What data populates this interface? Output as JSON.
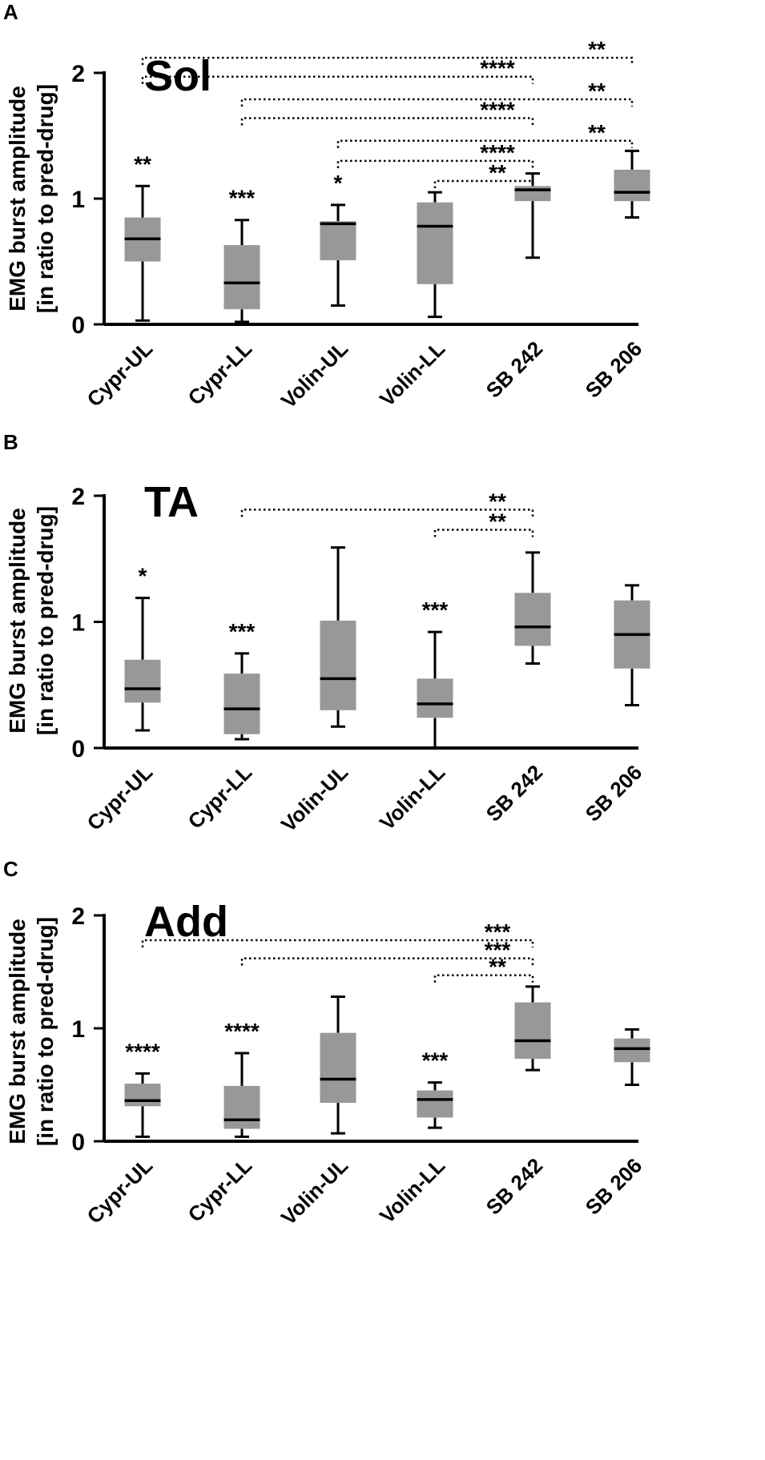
{
  "chart_data": [
    {
      "type": "box",
      "panel": "A",
      "title": "Sol",
      "ylabel_line1": "EMG burst amplitude",
      "ylabel_line2": "[in ratio to pred-drug]",
      "ylim": [
        0,
        2
      ],
      "yticks": [
        "0",
        "1",
        "2"
      ],
      "categories": [
        "Cypr-UL",
        "Cypr-LL",
        "Volin-UL",
        "Volin-LL",
        "SB 242",
        "SB 206"
      ],
      "boxes": [
        {
          "min": 0.03,
          "q1": 0.5,
          "median": 0.68,
          "q3": 0.85,
          "max": 1.1
        },
        {
          "min": 0.02,
          "q1": 0.12,
          "median": 0.33,
          "q3": 0.63,
          "max": 0.83
        },
        {
          "min": 0.15,
          "q1": 0.51,
          "median": 0.8,
          "q3": 0.82,
          "max": 0.95
        },
        {
          "min": 0.06,
          "q1": 0.32,
          "median": 0.78,
          "q3": 0.97,
          "max": 1.05
        },
        {
          "min": 0.53,
          "q1": 0.98,
          "median": 1.07,
          "q3": 1.1,
          "max": 1.2
        },
        {
          "min": 0.85,
          "q1": 0.98,
          "median": 1.05,
          "q3": 1.23,
          "max": 1.38
        }
      ],
      "stars": [
        "**",
        "***",
        "*",
        "",
        "",
        ""
      ],
      "comparisons": [
        {
          "from": 0,
          "to": 5,
          "label": "**",
          "level": 2.12
        },
        {
          "from": 0,
          "to": 4,
          "label": "****",
          "level": 1.97
        },
        {
          "from": 1,
          "to": 5,
          "label": "**",
          "level": 1.79
        },
        {
          "from": 1,
          "to": 4,
          "label": "****",
          "level": 1.64
        },
        {
          "from": 2,
          "to": 5,
          "label": "**",
          "level": 1.46
        },
        {
          "from": 2,
          "to": 4,
          "label": "****",
          "level": 1.3
        },
        {
          "from": 3,
          "to": 4,
          "label": "**",
          "level": 1.14
        }
      ]
    },
    {
      "type": "box",
      "panel": "B",
      "title": "TA",
      "ylabel_line1": "EMG burst amplitude",
      "ylabel_line2": "[in ratio to pred-drug]",
      "ylim": [
        0,
        2
      ],
      "yticks": [
        "0",
        "1",
        "2"
      ],
      "categories": [
        "Cypr-UL",
        "Cypr-LL",
        "Volin-UL",
        "Volin-LL",
        "SB 242",
        "SB 206"
      ],
      "boxes": [
        {
          "min": 0.14,
          "q1": 0.36,
          "median": 0.47,
          "q3": 0.7,
          "max": 1.19
        },
        {
          "min": 0.07,
          "q1": 0.11,
          "median": 0.31,
          "q3": 0.59,
          "max": 0.75
        },
        {
          "min": 0.17,
          "q1": 0.3,
          "median": 0.55,
          "q3": 1.01,
          "max": 1.59
        },
        {
          "min": 0.0,
          "q1": 0.24,
          "median": 0.35,
          "q3": 0.55,
          "max": 0.92
        },
        {
          "min": 0.67,
          "q1": 0.81,
          "median": 0.96,
          "q3": 1.23,
          "max": 1.55
        },
        {
          "min": 0.34,
          "q1": 0.63,
          "median": 0.9,
          "q3": 1.17,
          "max": 1.29
        }
      ],
      "stars": [
        "*",
        "***",
        "",
        "***",
        "",
        ""
      ],
      "comparisons": [
        {
          "from": 1,
          "to": 4,
          "label": "**",
          "level": 1.89
        },
        {
          "from": 3,
          "to": 4,
          "label": "**",
          "level": 1.73
        }
      ]
    },
    {
      "type": "box",
      "panel": "C",
      "title": "Add",
      "ylabel_line1": "EMG burst amplitude",
      "ylabel_line2": "[in ratio to pred-drug]",
      "ylim": [
        0,
        2
      ],
      "yticks": [
        "0",
        "1",
        "2"
      ],
      "categories": [
        "Cypr-UL",
        "Cypr-LL",
        "Volin-UL",
        "Volin-LL",
        "SB 242",
        "SB 206"
      ],
      "boxes": [
        {
          "min": 0.04,
          "q1": 0.31,
          "median": 0.36,
          "q3": 0.51,
          "max": 0.6
        },
        {
          "min": 0.04,
          "q1": 0.11,
          "median": 0.19,
          "q3": 0.49,
          "max": 0.78
        },
        {
          "min": 0.07,
          "q1": 0.34,
          "median": 0.55,
          "q3": 0.96,
          "max": 1.28
        },
        {
          "min": 0.12,
          "q1": 0.21,
          "median": 0.37,
          "q3": 0.45,
          "max": 0.52
        },
        {
          "min": 0.63,
          "q1": 0.73,
          "median": 0.89,
          "q3": 1.23,
          "max": 1.37
        },
        {
          "min": 0.5,
          "q1": 0.7,
          "median": 0.82,
          "q3": 0.91,
          "max": 0.99
        }
      ],
      "stars": [
        "****",
        "****",
        "",
        "***",
        "",
        ""
      ],
      "comparisons": [
        {
          "from": 0,
          "to": 4,
          "label": "***",
          "level": 1.78
        },
        {
          "from": 1,
          "to": 4,
          "label": "***",
          "level": 1.62
        },
        {
          "from": 3,
          "to": 4,
          "label": "**",
          "level": 1.47
        }
      ]
    }
  ]
}
